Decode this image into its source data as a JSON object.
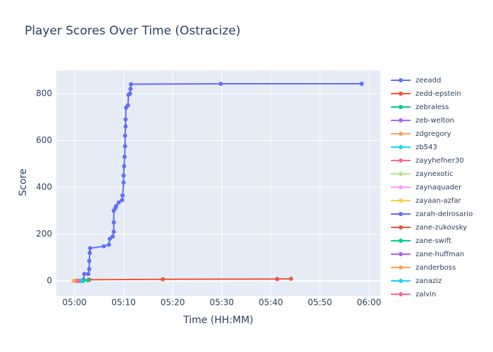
{
  "chart_data": {
    "type": "line",
    "title": "Player Scores Over Time (Ostracize)",
    "x_label": "Time (HH:MM)",
    "y_label": "Score",
    "xlim": [
      296.3,
      362.3
    ],
    "ylim": [
      -63,
      899
    ],
    "xticks": [
      {
        "value": 300,
        "label": "05:00"
      },
      {
        "value": 310,
        "label": "05:10"
      },
      {
        "value": 320,
        "label": "05:20"
      },
      {
        "value": 330,
        "label": "05:30"
      },
      {
        "value": 340,
        "label": "05:40"
      },
      {
        "value": 350,
        "label": "05:50"
      },
      {
        "value": 360,
        "label": "06:00"
      }
    ],
    "yticks": [
      0,
      200,
      400,
      600,
      800
    ],
    "grid": true,
    "series": [
      {
        "name": "zeeadd",
        "color": "#636efa",
        "x": [
          300.5,
          301.8,
          302,
          302.8,
          303,
          303,
          303.1,
          303.2,
          306,
          307,
          307.2,
          307.8,
          308,
          308,
          308,
          308.3,
          308.5,
          309,
          309.7,
          309.8,
          310,
          310,
          310.1,
          310.2,
          310.3,
          310.3,
          310.4,
          310.4,
          310.5,
          310.9,
          311,
          311.3,
          311.4,
          311.5,
          329.8,
          358.5
        ],
        "values": [
          0,
          5,
          30,
          30,
          50,
          85,
          120,
          140,
          148,
          155,
          180,
          190,
          210,
          250,
          300,
          310,
          320,
          335,
          345,
          365,
          420,
          450,
          490,
          530,
          575,
          620,
          660,
          690,
          740,
          750,
          795,
          800,
          820,
          840,
          842,
          842
        ]
      },
      {
        "name": "zedd-epstein",
        "color": "#ef553b",
        "x": [
          301,
          303,
          318,
          341.3,
          344.1
        ],
        "values": [
          0,
          5,
          7,
          8,
          9
        ]
      },
      {
        "name": "zebraless",
        "color": "#00cc96",
        "x": [
          301.5,
          302.7
        ],
        "values": [
          0,
          3
        ]
      },
      {
        "name": "zeb-welton",
        "color": "#ab63fa",
        "x": [
          300.8
        ],
        "values": [
          0
        ]
      },
      {
        "name": "zdgregory",
        "color": "#ffa15a",
        "x": [
          300
        ],
        "values": [
          0
        ]
      },
      {
        "name": "zb543",
        "color": "#19d3f3",
        "x": [
          301.2
        ],
        "values": [
          0
        ]
      },
      {
        "name": "zayyhefner30",
        "color": "#ff6692",
        "x": [
          300.6
        ],
        "values": [
          0
        ]
      },
      {
        "name": "zaynexotic",
        "color": "#b6e880",
        "x": [
          301.1
        ],
        "values": [
          0
        ]
      },
      {
        "name": "zaynaquader",
        "color": "#ff97ff",
        "x": [
          300.2
        ],
        "values": [
          0
        ]
      },
      {
        "name": "zayaan-azfar",
        "color": "#fecb52",
        "x": [
          299.8
        ],
        "values": [
          0
        ]
      },
      {
        "name": "zarah-delrosario",
        "color": "#636efa",
        "x": [
          300.9
        ],
        "values": [
          0
        ]
      },
      {
        "name": "zane-zukovsky",
        "color": "#ef553b",
        "x": [
          301.4
        ],
        "values": [
          0
        ]
      },
      {
        "name": "zane-swift",
        "color": "#00cc96",
        "x": [
          301.7
        ],
        "values": [
          0
        ]
      },
      {
        "name": "zane-huffman",
        "color": "#ab63fa",
        "x": [
          300.4
        ],
        "values": [
          0
        ]
      },
      {
        "name": "zanderboss",
        "color": "#ffa15a",
        "x": [
          300.1
        ],
        "values": [
          0
        ]
      },
      {
        "name": "zanaziz",
        "color": "#19d3f3",
        "x": [
          301.3
        ],
        "values": [
          0
        ]
      },
      {
        "name": "zalvin",
        "color": "#ff6692",
        "x": [
          300.7
        ],
        "values": [
          0
        ]
      }
    ]
  }
}
